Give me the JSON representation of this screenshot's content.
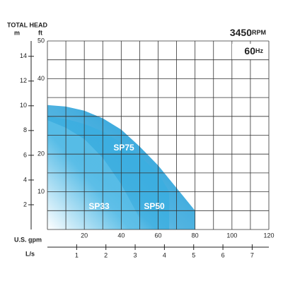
{
  "chart_data": {
    "type": "area",
    "y_axis_title": "TOTAL HEAD",
    "m_label": "m",
    "ft_label": "ft",
    "speed": "3450",
    "speed_unit": "RPM",
    "frequency": "60",
    "frequency_unit": "Hz",
    "x_label": "U.S. gpm",
    "x2_label": "L/s",
    "xlim": [
      0,
      120
    ],
    "xticks": [
      20,
      40,
      60,
      80,
      100,
      120
    ],
    "x2lim": [
      0,
      7.57
    ],
    "x2ticks": [
      1,
      2,
      3,
      4,
      5,
      6,
      7
    ],
    "ylim": [
      0,
      50
    ],
    "yticks": [
      10,
      20,
      40,
      50
    ],
    "y2lim": [
      0,
      15.24
    ],
    "y2ticks": [
      2,
      4,
      6,
      8,
      10,
      12,
      14
    ],
    "grid": true,
    "series": [
      {
        "name": "SP75",
        "color": "#1a9bd7",
        "x": [
          0,
          10,
          20,
          30,
          40,
          50,
          60,
          70,
          80
        ],
        "values": [
          33,
          32.6,
          31.5,
          29.5,
          26.5,
          22,
          17,
          11,
          5
        ]
      },
      {
        "name": "SP50",
        "color": "#3aaee0",
        "x": [
          0,
          10,
          20,
          30,
          40,
          50,
          60,
          66
        ],
        "values": [
          30,
          29.3,
          28,
          26,
          23,
          19.5,
          15,
          10
        ]
      },
      {
        "name": "SP33",
        "color": "#5cbfe8",
        "x": [
          0,
          10,
          20,
          30,
          40,
          50
        ],
        "values": [
          29,
          27,
          24,
          19,
          12,
          3
        ]
      }
    ]
  }
}
